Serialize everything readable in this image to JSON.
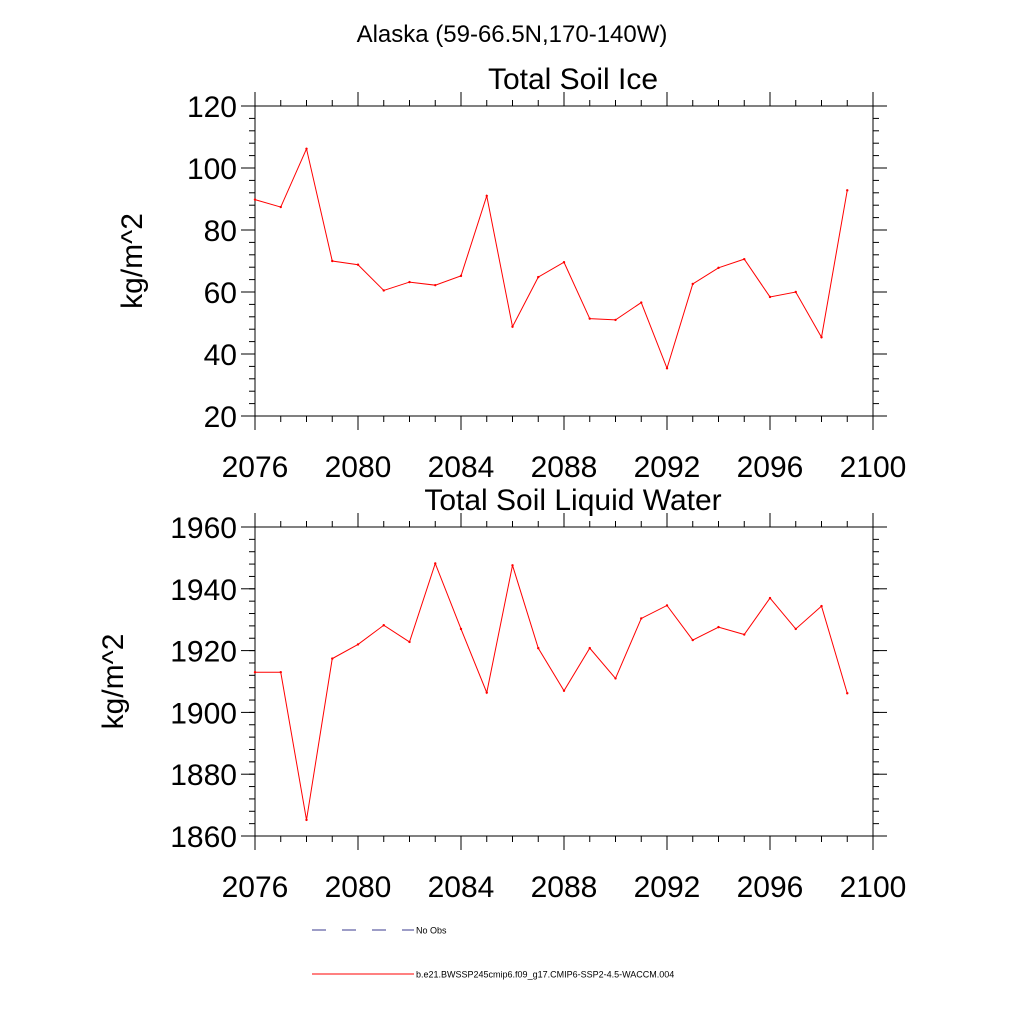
{
  "figure_title": "Alaska (59-66.5N,170-140W)",
  "chart_data": [
    {
      "type": "line",
      "title": "Total Soil Ice",
      "ylabel": "kg/m^2",
      "xlabel": "",
      "xlim": [
        2076,
        2100
      ],
      "ylim": [
        20,
        120
      ],
      "xticks": [
        2076,
        2080,
        2084,
        2088,
        2092,
        2096,
        2100
      ],
      "yticks": [
        20,
        40,
        60,
        80,
        100,
        120
      ],
      "x": [
        2076,
        2077,
        2078,
        2079,
        2080,
        2081,
        2082,
        2083,
        2084,
        2085,
        2086,
        2087,
        2088,
        2089,
        2090,
        2091,
        2092,
        2093,
        2094,
        2095,
        2096,
        2097,
        2098,
        2099
      ],
      "series": [
        {
          "name": "b.e21.BWSSP245cmip6.f09_g17.CMIP6-SSP2-4.5-WACCM.004",
          "color": "#ff0000",
          "values": [
            89.8,
            87.4,
            106.2,
            70.0,
            68.8,
            60.5,
            63.2,
            62.2,
            65.2,
            91.0,
            48.8,
            64.8,
            69.6,
            51.4,
            51.0,
            56.6,
            35.4,
            62.6,
            67.8,
            70.6,
            58.4,
            60.0,
            45.4,
            92.8
          ]
        }
      ]
    },
    {
      "type": "line",
      "title": "Total Soil Liquid Water",
      "ylabel": "kg/m^2",
      "xlabel": "",
      "xlim": [
        2076,
        2100
      ],
      "ylim": [
        1860,
        1960
      ],
      "xticks": [
        2076,
        2080,
        2084,
        2088,
        2092,
        2096,
        2100
      ],
      "yticks": [
        1860,
        1880,
        1900,
        1920,
        1940,
        1960
      ],
      "x": [
        2076,
        2077,
        2078,
        2079,
        2080,
        2081,
        2082,
        2083,
        2084,
        2085,
        2086,
        2087,
        2088,
        2089,
        2090,
        2091,
        2092,
        2093,
        2094,
        2095,
        2096,
        2097,
        2098,
        2099
      ],
      "series": [
        {
          "name": "b.e21.BWSSP245cmip6.f09_g17.CMIP6-SSP2-4.5-WACCM.004",
          "color": "#ff0000",
          "values": [
            1913.0,
            1913.0,
            1865.2,
            1917.4,
            1922.0,
            1928.2,
            1922.8,
            1948.2,
            1927.0,
            1906.4,
            1947.6,
            1920.8,
            1907.0,
            1920.8,
            1911.0,
            1930.4,
            1934.6,
            1923.4,
            1927.6,
            1925.2,
            1937.0,
            1927.0,
            1934.4,
            1906.2
          ]
        }
      ]
    }
  ],
  "legend": [
    {
      "label": "No Obs",
      "color": "#3b3b8f",
      "dash": true
    },
    {
      "label": "b.e21.BWSSP245cmip6.f09_g17.CMIP6-SSP2-4.5-WACCM.004",
      "color": "#ff0000",
      "dash": false
    }
  ]
}
